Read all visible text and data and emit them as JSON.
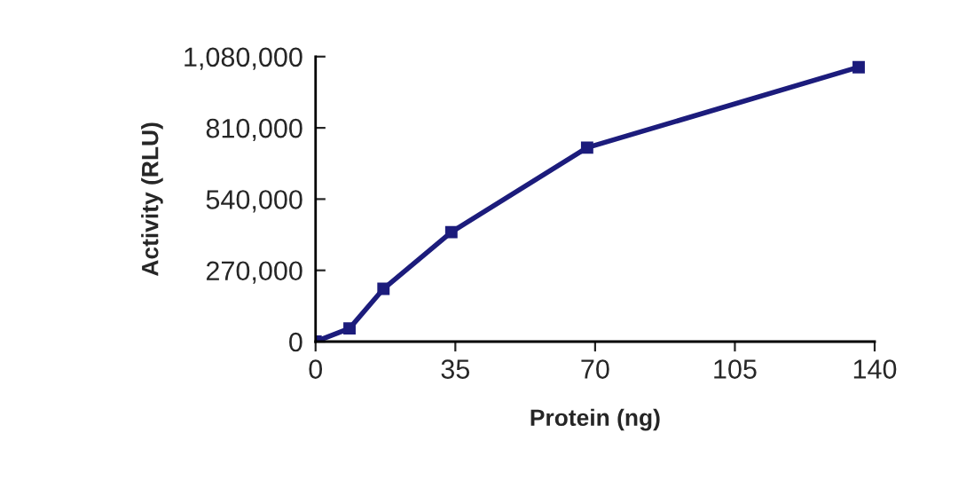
{
  "chart_data": {
    "type": "line",
    "xlabel": "Protein (ng)",
    "ylabel": "Activity (RLU)",
    "x": [
      0,
      8.5,
      17,
      34,
      68,
      136
    ],
    "series": [
      {
        "color": "#1c1c7c",
        "values": [
          0,
          50000,
          200000,
          415000,
          735000,
          1040000
        ]
      }
    ],
    "xlim": [
      0,
      140
    ],
    "xticks": [
      0,
      35,
      70,
      105,
      140
    ],
    "ylim": [
      0,
      1080000
    ],
    "yticks": [
      {
        "value": 0,
        "label": "0"
      },
      {
        "value": 270000,
        "label": "270,000"
      },
      {
        "value": 540000,
        "label": "540,000"
      },
      {
        "value": 810000,
        "label": "810,000"
      },
      {
        "value": 1080000,
        "label": "1,080,000"
      }
    ],
    "grid": false,
    "legend": false,
    "marker": "square",
    "line_style": "solid"
  }
}
